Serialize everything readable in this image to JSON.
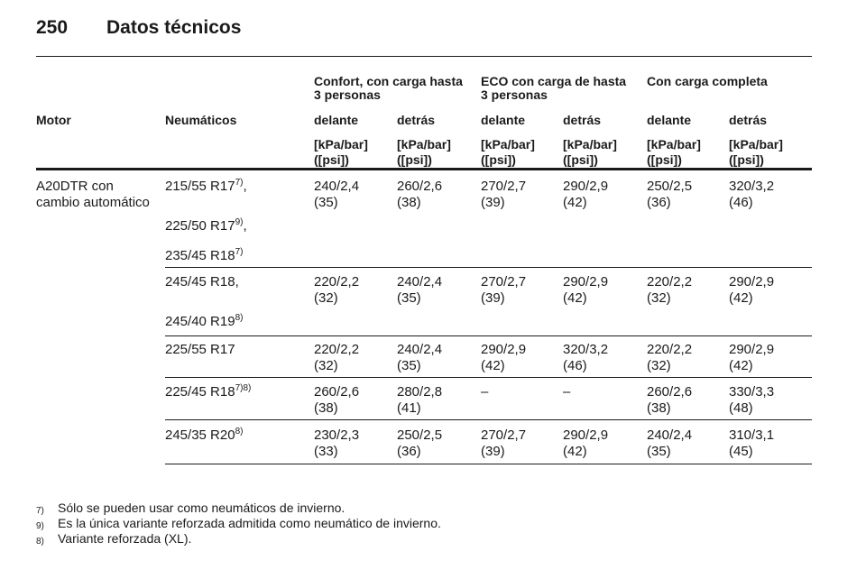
{
  "header": {
    "page_number": "250",
    "title": "Datos técnicos"
  },
  "table": {
    "group_headers": [
      [
        "Confort, con carga hasta",
        "3 personas"
      ],
      [
        "ECO con carga de hasta",
        "3 personas"
      ],
      [
        "Con carga completa"
      ]
    ],
    "column_headers": [
      "Motor",
      "Neumáticos",
      "delante",
      "detrás",
      "delante",
      "detrás",
      "delante",
      "detrás"
    ],
    "units": [
      [
        "[kPa/bar]",
        "([psi])"
      ],
      [
        "[kPa/bar]",
        "([psi])"
      ],
      [
        "[kPa/bar]",
        "([psi])"
      ],
      [
        "[kPa/bar]",
        "([psi])"
      ],
      [
        "[kPa/bar]",
        "([psi])"
      ],
      [
        "[kPa/bar]",
        "([psi])"
      ]
    ],
    "rows": [
      {
        "motor": [
          "A20DTR con",
          "cambio automático"
        ],
        "tires": [
          {
            "text": "215/55 R17",
            "sup": "7)",
            "suffix": ","
          },
          {
            "text": "225/50 R17",
            "sup": "9)",
            "suffix": ","
          },
          {
            "text": "235/45 R18",
            "sup": "7)"
          }
        ],
        "values": [
          [
            "240/2,4",
            "(35)"
          ],
          [
            "260/2,6",
            "(38)"
          ],
          [
            "270/2,7",
            "(39)"
          ],
          [
            "290/2,9",
            "(42)"
          ],
          [
            "250/2,5",
            "(36)"
          ],
          [
            "320/3,2",
            "(46)"
          ]
        ]
      },
      {
        "tires": [
          {
            "text": "245/45 R18,"
          },
          {
            "text": "245/40 R19",
            "sup": "8)"
          }
        ],
        "values": [
          [
            "220/2,2",
            "(32)"
          ],
          [
            "240/2,4",
            "(35)"
          ],
          [
            "270/2,7",
            "(39)"
          ],
          [
            "290/2,9",
            "(42)"
          ],
          [
            "220/2,2",
            "(32)"
          ],
          [
            "290/2,9",
            "(42)"
          ]
        ]
      },
      {
        "tires": [
          {
            "text": "225/55 R17"
          }
        ],
        "values": [
          [
            "220/2,2",
            "(32)"
          ],
          [
            "240/2,4",
            "(35)"
          ],
          [
            "290/2,9",
            "(42)"
          ],
          [
            "320/3,2",
            "(46)"
          ],
          [
            "220/2,2",
            "(32)"
          ],
          [
            "290/2,9",
            "(42)"
          ]
        ]
      },
      {
        "tires": [
          {
            "text": "225/45 R18",
            "sup": "7)8)"
          }
        ],
        "values": [
          [
            "260/2,6",
            "(38)"
          ],
          [
            "280/2,8",
            "(41)"
          ],
          [
            "–"
          ],
          [
            "–"
          ],
          [
            "260/2,6",
            "(38)"
          ],
          [
            "330/3,3",
            "(48)"
          ]
        ]
      },
      {
        "tires": [
          {
            "text": "245/35 R20",
            "sup": "8)"
          }
        ],
        "values": [
          [
            "230/2,3",
            "(33)"
          ],
          [
            "250/2,5",
            "(36)"
          ],
          [
            "270/2,7",
            "(39)"
          ],
          [
            "290/2,9",
            "(42)"
          ],
          [
            "240/2,4",
            "(35)"
          ],
          [
            "310/3,1",
            "(45)"
          ]
        ]
      }
    ]
  },
  "footnotes": [
    {
      "mark": "7)",
      "text": "Sólo se pueden usar como neumáticos de invierno."
    },
    {
      "mark": "9)",
      "text": "Es la única variante reforzada admitida como neumático de invierno."
    },
    {
      "mark": "8)",
      "text": "Variante reforzada (XL)."
    }
  ]
}
